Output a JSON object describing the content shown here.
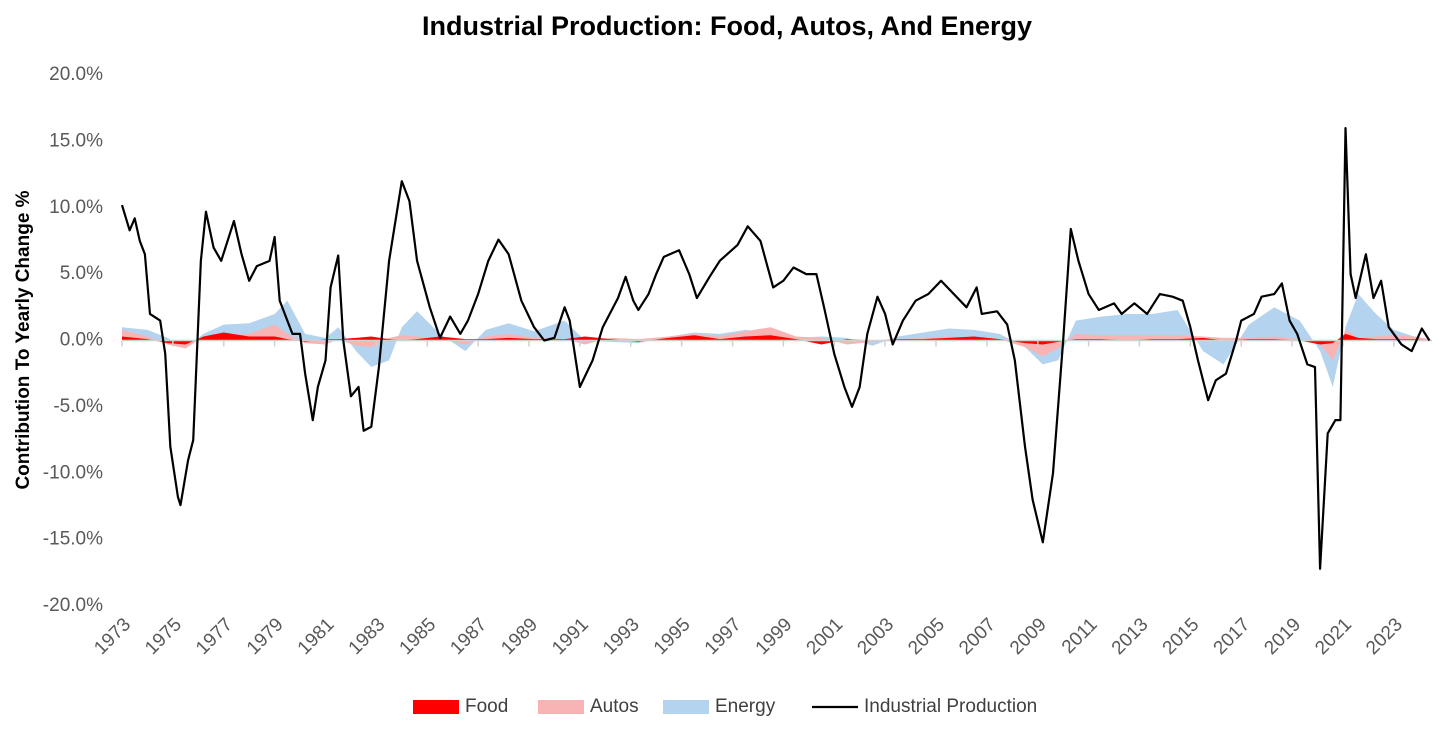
{
  "chart_data": {
    "type": "area",
    "title": "Industrial Production: Food, Autos, And Energy",
    "y_label": "Contribution To Yearly Change %",
    "xlim": [
      1973,
      2024.5
    ],
    "xticks": [
      1973,
      1975,
      1977,
      1979,
      1981,
      1983,
      1985,
      1987,
      1989,
      1991,
      1993,
      1995,
      1997,
      1999,
      2001,
      2003,
      2005,
      2007,
      2009,
      2011,
      2013,
      2015,
      2017,
      2019,
      2021,
      2023
    ],
    "ylim": [
      -20,
      20
    ],
    "yticks": [
      {
        "value": -20,
        "label": "-20.0%"
      },
      {
        "value": -15,
        "label": "-15.0%"
      },
      {
        "value": -10,
        "label": "-10.0%"
      },
      {
        "value": -5,
        "label": "-5.0%"
      },
      {
        "value": 0,
        "label": "0.0%"
      },
      {
        "value": 5,
        "label": "5.0%"
      },
      {
        "value": 10,
        "label": "10.0%"
      },
      {
        "value": 15,
        "label": "15.0%"
      },
      {
        "value": 20,
        "label": "20.0%"
      }
    ],
    "grid": false,
    "legend": "bottom",
    "series": [
      {
        "name": "Food",
        "type": "area",
        "color": "#ff0000",
        "x": [
          1973.0,
          1974.0,
          1974.8,
          1975.5,
          1976.2,
          1977.0,
          1978.0,
          1979.0,
          1979.5,
          1980.2,
          1981.0,
          1981.5,
          1982.2,
          1982.8,
          1983.5,
          1984.0,
          1984.6,
          1985.5,
          1986.5,
          1987.3,
          1988.2,
          1989.2,
          1990.4,
          1991.2,
          1992.2,
          1993.3,
          1994.5,
          1995.5,
          1996.5,
          1997.5,
          1998.5,
          1999.5,
          2000.5,
          2001.5,
          2002.5,
          2003.5,
          2004.5,
          2005.5,
          2006.5,
          2007.5,
          2008.5,
          2009.2,
          2009.8,
          2010.5,
          2011.5,
          2012.5,
          2013.5,
          2014.5,
          2015.5,
          2016.3,
          2017.3,
          2018.3,
          2019.3,
          2020.1,
          2020.6,
          2021.1,
          2021.6,
          2022.3,
          2023.0,
          2023.8,
          2024.4
        ],
        "values": [
          0.3,
          0.1,
          -0.2,
          -0.3,
          0.3,
          0.6,
          0.3,
          0.3,
          0.1,
          -0.1,
          0.1,
          0.1,
          0.2,
          0.3,
          0.1,
          0.0,
          0.1,
          0.3,
          0.1,
          0.1,
          0.2,
          0.1,
          0.1,
          0.3,
          0.1,
          -0.1,
          0.2,
          0.4,
          0.1,
          0.3,
          0.4,
          0.1,
          -0.3,
          0.1,
          0.0,
          0.1,
          0.1,
          0.2,
          0.3,
          0.1,
          -0.2,
          -0.3,
          -0.1,
          0.1,
          0.1,
          0.0,
          0.1,
          0.1,
          0.2,
          0.0,
          0.1,
          0.1,
          0.0,
          -0.3,
          -0.2,
          0.5,
          0.2,
          0.1,
          0.1,
          0.1,
          0.0
        ]
      },
      {
        "name": "Autos",
        "type": "area",
        "color": "#f8b4b4",
        "x": [
          1973.0,
          1974.0,
          1974.8,
          1975.5,
          1976.2,
          1977.0,
          1978.0,
          1979.0,
          1979.5,
          1980.2,
          1981.0,
          1981.5,
          1982.2,
          1982.8,
          1983.5,
          1984.0,
          1984.6,
          1985.5,
          1986.5,
          1987.3,
          1988.2,
          1989.2,
          1990.4,
          1991.2,
          1992.2,
          1993.3,
          1994.5,
          1995.5,
          1996.5,
          1997.5,
          1998.5,
          1999.5,
          2000.5,
          2001.5,
          2002.5,
          2003.5,
          2004.5,
          2005.5,
          2006.5,
          2007.5,
          2008.5,
          2009.2,
          2009.8,
          2010.5,
          2011.5,
          2012.5,
          2013.5,
          2014.5,
          2015.5,
          2016.3,
          2017.3,
          2018.3,
          2019.3,
          2020.1,
          2020.6,
          2021.1,
          2021.6,
          2022.3,
          2023.0,
          2023.8,
          2024.4
        ],
        "values": [
          0.8,
          0.3,
          -0.3,
          -0.6,
          0.3,
          0.4,
          0.5,
          1.2,
          0.5,
          -0.2,
          -0.3,
          0.1,
          -0.4,
          -0.5,
          0.2,
          0.4,
          0.3,
          0.1,
          -0.3,
          0.3,
          0.5,
          0.2,
          0.1,
          -0.3,
          0.2,
          0.1,
          0.3,
          0.5,
          0.3,
          0.7,
          1.0,
          0.3,
          0.2,
          -0.3,
          -0.1,
          0.1,
          0.2,
          0.3,
          0.2,
          0.1,
          -0.5,
          -1.2,
          -0.6,
          0.5,
          0.4,
          0.4,
          0.4,
          0.4,
          0.3,
          0.2,
          0.2,
          0.3,
          0.1,
          -0.3,
          -1.5,
          0.8,
          0.2,
          0.3,
          0.4,
          0.3,
          0.1
        ]
      },
      {
        "name": "Energy",
        "type": "area",
        "color": "#b4d3ee",
        "x": [
          1973.0,
          1974.0,
          1974.8,
          1975.5,
          1976.2,
          1977.0,
          1978.0,
          1979.0,
          1979.5,
          1980.2,
          1981.0,
          1981.5,
          1982.2,
          1982.8,
          1983.5,
          1984.0,
          1984.6,
          1985.5,
          1986.5,
          1987.3,
          1988.2,
          1989.2,
          1990.4,
          1991.2,
          1992.2,
          1993.3,
          1994.5,
          1995.5,
          1996.5,
          1997.5,
          1998.5,
          1999.5,
          2000.5,
          2001.5,
          2002.5,
          2003.5,
          2004.5,
          2005.5,
          2006.5,
          2007.5,
          2008.5,
          2009.2,
          2009.8,
          2010.5,
          2011.5,
          2012.5,
          2013.5,
          2014.5,
          2015.5,
          2016.3,
          2017.3,
          2018.3,
          2019.3,
          2020.1,
          2020.6,
          2021.1,
          2021.6,
          2022.3,
          2023.0,
          2023.8,
          2024.4
        ],
        "values": [
          1.0,
          0.8,
          0.2,
          -0.6,
          0.5,
          1.2,
          1.3,
          2.0,
          3.0,
          0.5,
          0.2,
          1.0,
          -0.8,
          -2.0,
          -1.5,
          1.0,
          2.2,
          0.5,
          -0.8,
          0.8,
          1.3,
          0.7,
          1.5,
          0.0,
          -0.1,
          -0.2,
          0.3,
          0.6,
          0.5,
          0.8,
          0.6,
          0.2,
          0.3,
          0.2,
          -0.4,
          0.3,
          0.6,
          0.9,
          0.8,
          0.5,
          -0.5,
          -1.8,
          -1.5,
          1.5,
          1.8,
          2.0,
          2.0,
          2.3,
          -0.8,
          -1.8,
          1.2,
          2.5,
          1.5,
          -0.8,
          -3.5,
          1.0,
          3.5,
          2.0,
          0.8,
          0.3,
          0.1
        ]
      },
      {
        "name": "Industrial Production",
        "type": "line",
        "color": "#000000",
        "x": [
          1973.0,
          1973.3,
          1973.5,
          1973.7,
          1973.9,
          1974.1,
          1974.5,
          1974.7,
          1974.9,
          1975.2,
          1975.3,
          1975.6,
          1975.8,
          1976.1,
          1976.3,
          1976.6,
          1976.9,
          1977.4,
          1977.7,
          1978.0,
          1978.3,
          1978.8,
          1979.0,
          1979.2,
          1979.7,
          1980.0,
          1980.2,
          1980.5,
          1980.7,
          1981.0,
          1981.2,
          1981.5,
          1981.7,
          1982.0,
          1982.3,
          1982.5,
          1982.8,
          1983.1,
          1983.5,
          1984.0,
          1984.3,
          1984.6,
          1985.1,
          1985.5,
          1985.9,
          1986.3,
          1986.6,
          1987.0,
          1987.4,
          1987.8,
          1988.2,
          1988.7,
          1989.2,
          1989.6,
          1990.0,
          1990.4,
          1990.6,
          1991.0,
          1991.5,
          1991.9,
          1992.5,
          1992.8,
          1993.1,
          1993.3,
          1993.7,
          1994.0,
          1994.3,
          1994.9,
          1995.3,
          1995.6,
          1996.1,
          1996.5,
          1997.2,
          1997.6,
          1998.1,
          1998.6,
          1999.0,
          1999.4,
          1999.9,
          2000.3,
          2000.6,
          2001.0,
          2001.4,
          2001.7,
          2002.0,
          2002.3,
          2002.7,
          2003.0,
          2003.3,
          2003.7,
          2004.2,
          2004.7,
          2005.2,
          2005.7,
          2006.2,
          2006.6,
          2006.8,
          2007.4,
          2007.8,
          2008.1,
          2008.5,
          2008.8,
          2009.2,
          2009.6,
          2010.0,
          2010.3,
          2010.6,
          2011.0,
          2011.4,
          2012.0,
          2012.3,
          2012.8,
          2013.3,
          2013.8,
          2014.3,
          2014.7,
          2015.0,
          2015.3,
          2015.7,
          2016.0,
          2016.4,
          2016.8,
          2017.0,
          2017.5,
          2017.8,
          2018.3,
          2018.6,
          2018.9,
          2019.2,
          2019.6,
          2019.9,
          2020.1,
          2020.4,
          2020.7,
          2020.9,
          2021.1,
          2021.3,
          2021.5,
          2021.9,
          2022.2,
          2022.5,
          2022.8,
          2023.3,
          2023.7,
          2024.1,
          2024.4
        ],
        "values": [
          10.2,
          8.3,
          9.2,
          7.5,
          6.5,
          2.0,
          1.5,
          -1.0,
          -8.0,
          -11.8,
          -12.4,
          -9.0,
          -7.5,
          6.0,
          9.7,
          7.0,
          6.0,
          9.0,
          6.5,
          4.5,
          5.6,
          6.0,
          7.8,
          3.0,
          0.5,
          0.5,
          -2.5,
          -6.0,
          -3.5,
          -1.5,
          4.0,
          6.4,
          0.0,
          -4.2,
          -3.5,
          -6.8,
          -6.5,
          -2.0,
          6.0,
          12.0,
          10.5,
          6.0,
          2.5,
          0.2,
          1.8,
          0.5,
          1.5,
          3.5,
          6.0,
          7.6,
          6.5,
          3.0,
          1.0,
          0.0,
          0.2,
          2.5,
          1.5,
          -3.5,
          -1.5,
          1.0,
          3.2,
          4.8,
          3.0,
          2.3,
          3.5,
          5.0,
          6.3,
          6.8,
          5.0,
          3.2,
          4.8,
          6.0,
          7.2,
          8.6,
          7.5,
          4.0,
          4.5,
          5.5,
          5.0,
          5.0,
          2.5,
          -1.0,
          -3.5,
          -5.0,
          -3.5,
          0.5,
          3.3,
          2.0,
          -0.3,
          1.5,
          3.0,
          3.5,
          4.5,
          3.5,
          2.5,
          4.0,
          2.0,
          2.2,
          1.2,
          -1.5,
          -8.0,
          -12.0,
          -15.2,
          -10.0,
          0.0,
          8.4,
          6.0,
          3.5,
          2.3,
          2.8,
          2.0,
          2.8,
          2.0,
          3.5,
          3.3,
          3.0,
          1.0,
          -1.5,
          -4.5,
          -3.0,
          -2.5,
          0.0,
          1.5,
          2.0,
          3.3,
          3.5,
          4.3,
          1.5,
          0.5,
          -1.8,
          -2.0,
          -17.2,
          -7.0,
          -6.0,
          -6.0,
          16.0,
          5.0,
          3.2,
          6.5,
          3.2,
          4.5,
          1.0,
          -0.3,
          -0.8,
          0.9,
          0.0
        ]
      }
    ]
  }
}
